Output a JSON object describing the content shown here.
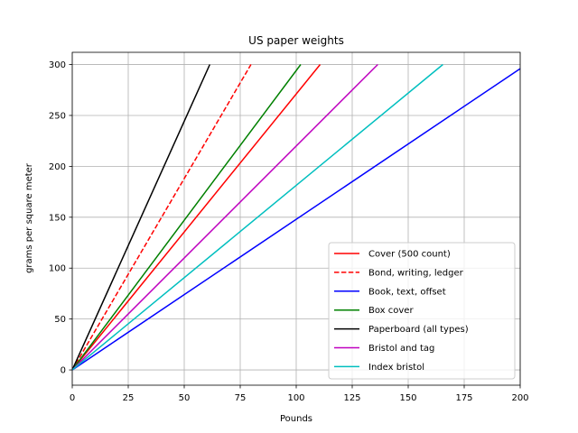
{
  "chart_data": {
    "type": "line",
    "title": "US paper weights",
    "xlabel": "Pounds",
    "ylabel": "grams per square meter",
    "xlim": [
      0,
      200
    ],
    "ylim": [
      -15,
      312
    ],
    "xticks": [
      "0",
      "25",
      "50",
      "75",
      "100",
      "125",
      "150",
      "175",
      "200"
    ],
    "yticks": [
      "0",
      "50",
      "100",
      "150",
      "200",
      "250",
      "300"
    ],
    "grid": true,
    "legend_position": "lower-right",
    "series": [
      {
        "name": "Cover (500 count)",
        "color": "#ff0000",
        "dash": "solid",
        "x": [
          0,
          110.7
        ],
        "y": [
          0,
          300
        ]
      },
      {
        "name": "Bond, writing, ledger",
        "color": "#ff0000",
        "dash": "dashed",
        "x": [
          0,
          79.8
        ],
        "y": [
          0,
          300
        ]
      },
      {
        "name": "Book, text, offset",
        "color": "#0000ff",
        "dash": "solid",
        "x": [
          0,
          200
        ],
        "y": [
          0,
          296
        ]
      },
      {
        "name": "Box cover",
        "color": "#008000",
        "dash": "solid",
        "x": [
          0,
          102
        ],
        "y": [
          0,
          300
        ]
      },
      {
        "name": "Paperboard (all types)",
        "color": "#000000",
        "dash": "solid",
        "x": [
          0,
          61.4
        ],
        "y": [
          0,
          300
        ]
      },
      {
        "name": "Bristol and tag",
        "color": "#bf00bf",
        "dash": "solid",
        "x": [
          0,
          136.4
        ],
        "y": [
          0,
          300
        ]
      },
      {
        "name": "Index bristol",
        "color": "#00bfbf",
        "dash": "solid",
        "x": [
          0,
          165.5
        ],
        "y": [
          0,
          300
        ]
      }
    ]
  }
}
